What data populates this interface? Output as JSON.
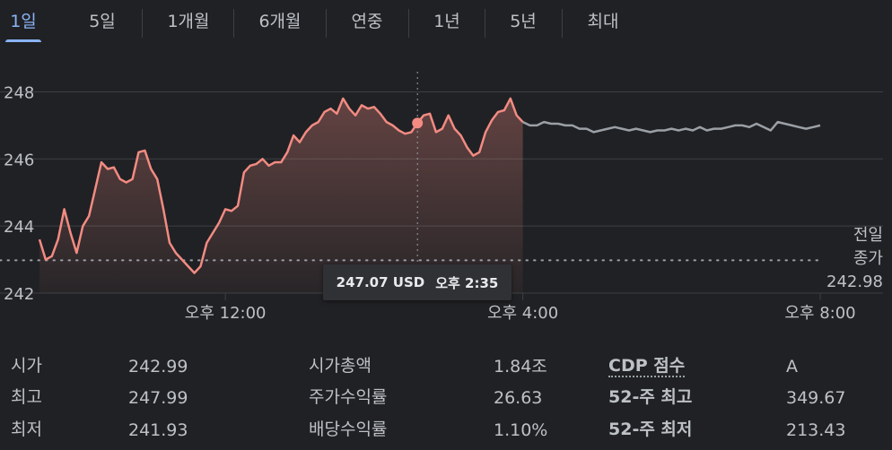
{
  "tabs": [
    {
      "label": "1일",
      "active": true
    },
    {
      "label": "5일"
    },
    {
      "label": "1개월"
    },
    {
      "label": "6개월"
    },
    {
      "label": "연중"
    },
    {
      "label": "1년"
    },
    {
      "label": "5년"
    },
    {
      "label": "최대"
    }
  ],
  "chart_data": {
    "type": "line",
    "ylim": [
      242,
      248.6
    ],
    "y_ticks": [
      "248",
      "246",
      "244",
      "242"
    ],
    "x_ticks": [
      "오후 12:00",
      "오후 4:00",
      "오후 8:00"
    ],
    "x_hours_range": [
      9.5,
      20.0
    ],
    "previous_close": 242.98,
    "colors": {
      "regular": "#f28b82",
      "extended": "#9aa0a6",
      "grid": "#3c4043"
    },
    "regular_session": {
      "time_start": "9:30",
      "time_end": "16:00",
      "values": [
        243.6,
        243.0,
        243.1,
        243.6,
        244.5,
        243.8,
        243.2,
        244.0,
        244.3,
        245.1,
        245.9,
        245.7,
        245.75,
        245.4,
        245.3,
        245.4,
        246.2,
        246.25,
        245.7,
        245.4,
        244.5,
        243.5,
        243.2,
        243.0,
        242.8,
        242.6,
        242.8,
        243.5,
        243.8,
        244.1,
        244.5,
        244.45,
        244.6,
        245.6,
        245.8,
        245.85,
        246.0,
        245.8,
        245.9,
        245.9,
        246.2,
        246.7,
        246.5,
        246.8,
        247.0,
        247.1,
        247.4,
        247.5,
        247.35,
        247.8,
        247.5,
        247.3,
        247.6,
        247.5,
        247.55,
        247.35,
        247.1,
        247.0,
        246.85,
        246.75,
        246.8,
        247.07,
        247.3,
        247.35,
        246.8,
        246.9,
        247.3,
        246.9,
        246.7,
        246.35,
        246.1,
        246.2,
        246.8,
        247.15,
        247.4,
        247.45,
        247.8,
        247.3,
        247.1
      ],
      "hover": {
        "value": 247.07,
        "time": "14:35"
      }
    },
    "extended_session": {
      "time_start": "16:00",
      "time_end": "20:00",
      "values": [
        247.1,
        247.0,
        247.0,
        247.1,
        247.05,
        247.05,
        247.0,
        247.0,
        246.9,
        246.9,
        246.8,
        246.85,
        246.9,
        246.95,
        246.9,
        246.85,
        246.9,
        246.85,
        246.8,
        246.85,
        246.85,
        246.9,
        246.85,
        246.9,
        246.85,
        246.95,
        246.85,
        246.9,
        246.9,
        246.95,
        247.0,
        247.0,
        246.95,
        247.05,
        246.95,
        246.85,
        247.1,
        247.05,
        247.0,
        246.95,
        246.9,
        246.95,
        247.0
      ]
    }
  },
  "tooltip": {
    "price": "247.07 USD",
    "time": "오후 2:35"
  },
  "prev_close": {
    "line1": "전일",
    "line2": "종가",
    "value": "242.98"
  },
  "stats": [
    {
      "label": "시가",
      "value": "242.99"
    },
    {
      "label": "최고",
      "value": "247.99"
    },
    {
      "label": "최저",
      "value": "241.93"
    },
    {
      "label": "시가총액",
      "value": "1.84조"
    },
    {
      "label": "주가수익률",
      "value": "26.63"
    },
    {
      "label": "배당수익률",
      "value": "1.10%"
    },
    {
      "label": "CDP 점수",
      "value": "A"
    },
    {
      "label": "52-주 최고",
      "value": "349.67"
    },
    {
      "label": "52-주 최저",
      "value": "213.43"
    }
  ]
}
